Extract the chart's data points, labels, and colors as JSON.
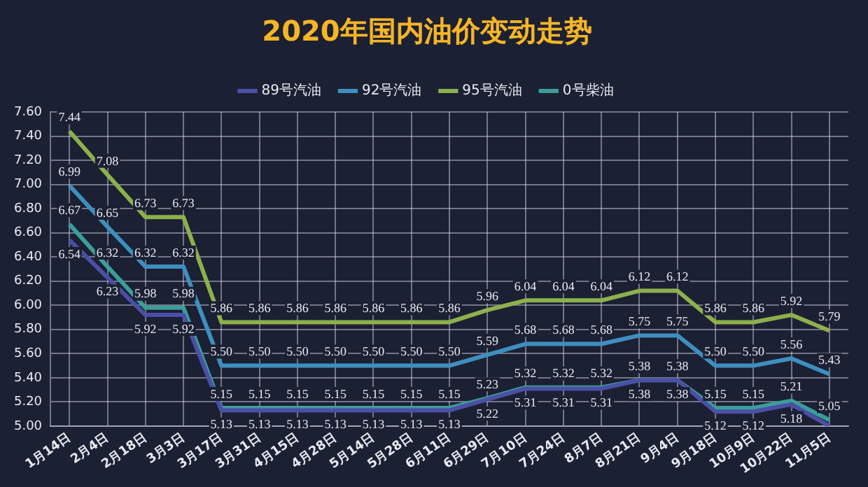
{
  "chart_data": {
    "type": "line",
    "title": "2020年国内油价变动走势",
    "categories": [
      "1月14日",
      "2月4日",
      "2月18日",
      "3月3日",
      "3月17日",
      "3月31日",
      "4月15日",
      "4月28日",
      "5月14日",
      "5月28日",
      "6月11日",
      "6月29日",
      "7月10日",
      "7月24日",
      "8月7日",
      "8月21日",
      "9月4日",
      "9月18日",
      "10月9日",
      "10月22日",
      "11月5日"
    ],
    "series": [
      {
        "name": "89号汽油",
        "color": "#4b4fa6",
        "values": [
          6.54,
          6.23,
          5.92,
          5.92,
          5.13,
          5.13,
          5.13,
          5.13,
          5.13,
          5.13,
          5.13,
          5.22,
          5.31,
          5.31,
          5.31,
          5.38,
          5.38,
          5.12,
          5.12,
          5.18,
          5.0
        ],
        "value_labels": [
          "6.54",
          "6.23",
          "5.92",
          "5.92",
          "5.13",
          "5.13",
          "5.13",
          "5.13",
          "5.13",
          "5.13",
          "5.13",
          "5.22",
          "5.31",
          "5.31",
          "5.31",
          "5.38",
          "5.38",
          "5.12",
          "5.12",
          "5.18",
          null
        ]
      },
      {
        "name": "92号汽油",
        "color": "#3d8fbf",
        "values": [
          6.99,
          6.65,
          6.32,
          6.32,
          5.5,
          5.5,
          5.5,
          5.5,
          5.5,
          5.5,
          5.5,
          5.59,
          5.68,
          5.68,
          5.68,
          5.75,
          5.75,
          5.5,
          5.5,
          5.56,
          5.43
        ],
        "value_labels": [
          "6.99",
          "6.65",
          "6.32",
          "6.32",
          "5.50",
          "5.50",
          "5.50",
          "5.50",
          "5.50",
          "5.50",
          "5.50",
          "5.59",
          "5.68",
          "5.68",
          "5.68",
          "5.75",
          "5.75",
          "5.50",
          "5.50",
          "5.56",
          "5.43"
        ]
      },
      {
        "name": "95号汽油",
        "color": "#8db04c",
        "values": [
          7.44,
          7.08,
          6.73,
          6.73,
          5.86,
          5.86,
          5.86,
          5.86,
          5.86,
          5.86,
          5.86,
          5.96,
          6.04,
          6.04,
          6.04,
          6.12,
          6.12,
          5.86,
          5.86,
          5.92,
          5.79
        ],
        "value_labels": [
          "7.44",
          "7.08",
          "6.73",
          "6.73",
          "5.86",
          "5.86",
          "5.86",
          "5.86",
          "5.86",
          "5.86",
          "5.86",
          "5.96",
          "6.04",
          "6.04",
          "6.04",
          "6.12",
          "6.12",
          "5.86",
          "5.86",
          "5.92",
          "5.79"
        ]
      },
      {
        "name": "0号柴油",
        "color": "#3a9e9a",
        "values": [
          6.67,
          6.32,
          5.98,
          5.98,
          5.15,
          5.15,
          5.15,
          5.15,
          5.15,
          5.15,
          5.15,
          5.23,
          5.32,
          5.32,
          5.32,
          5.38,
          5.38,
          5.15,
          5.15,
          5.21,
          5.05
        ],
        "value_labels": [
          "6.67",
          "6.32",
          "5.98",
          "5.98",
          "5.15",
          "5.15",
          "5.15",
          "5.15",
          "5.15",
          "5.15",
          "5.15",
          "5.23",
          "5.32",
          "5.32",
          "5.32",
          "5.38",
          "5.38",
          "5.15",
          "5.15",
          "5.21",
          "5.05"
        ]
      }
    ],
    "ylim": [
      5.0,
      7.6
    ],
    "yticks": [
      {
        "value": 5.0,
        "label": "5.00"
      },
      {
        "value": 5.2,
        "label": "5.20"
      },
      {
        "value": 5.4,
        "label": "5.40"
      },
      {
        "value": 5.6,
        "label": "5.60"
      },
      {
        "value": 5.8,
        "label": "5.80"
      },
      {
        "value": 6.0,
        "label": "6.00"
      },
      {
        "value": 6.2,
        "label": "6.20"
      },
      {
        "value": 6.4,
        "label": "6.40"
      },
      {
        "value": 6.6,
        "label": "6.60"
      },
      {
        "value": 6.8,
        "label": "6.80"
      },
      {
        "value": 7.0,
        "label": "7.00"
      },
      {
        "value": 7.2,
        "label": "7.20"
      },
      {
        "value": 7.4,
        "label": "7.40"
      },
      {
        "value": 7.6,
        "label": "7.60"
      }
    ],
    "grid": true,
    "legend": "top",
    "marker": "none",
    "line_style": "solid"
  }
}
